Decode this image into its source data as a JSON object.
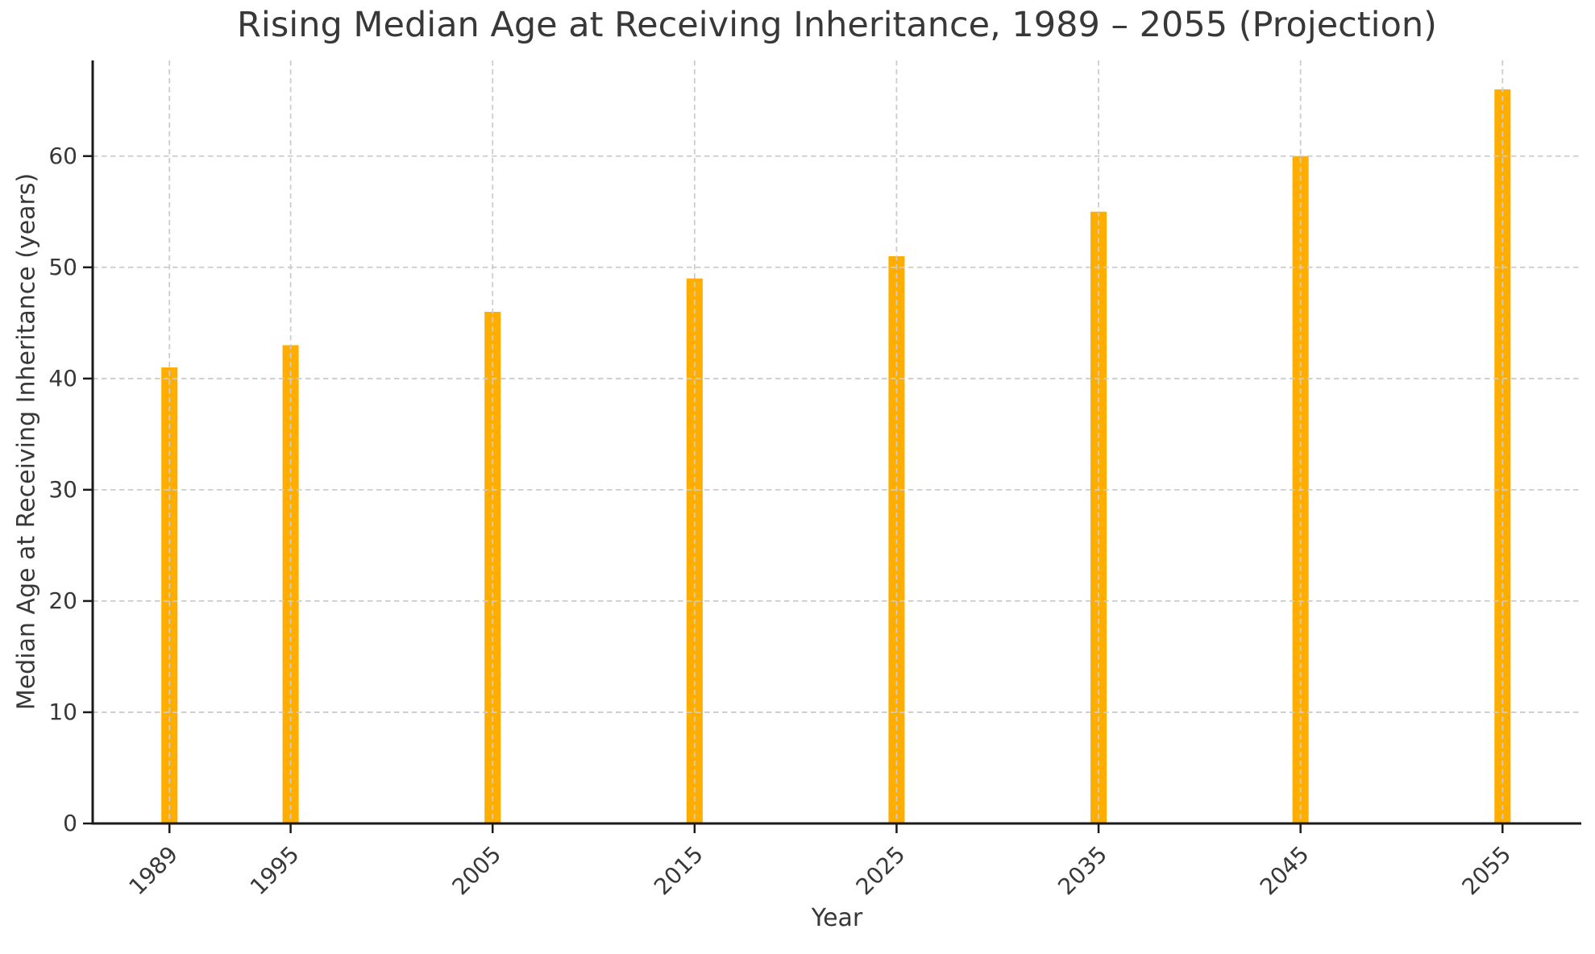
{
  "chart_data": {
    "type": "bar",
    "title": "Rising Median Age at Receiving Inheritance, 1989 – 2055 (Projection)",
    "xlabel": "Year",
    "ylabel": "Median Age at Receiving Inheritance (years)",
    "x": [
      1989,
      1995,
      2005,
      2015,
      2025,
      2035,
      2045,
      2055
    ],
    "values": [
      41,
      43,
      46,
      49,
      51,
      55,
      60,
      66
    ],
    "yticks": [
      0,
      10,
      20,
      30,
      40,
      50,
      60
    ],
    "xlim": [
      1985.2,
      2058.9
    ],
    "ylim": [
      0,
      68.6
    ],
    "bar_width_years": 0.8,
    "x_tick_rotation": -45,
    "grid": true,
    "legend": null,
    "colors": {
      "bar": "#FFAE00",
      "grid": "#cccccc",
      "axis": "#1a1a1a",
      "text": "#383838",
      "background": "#ffffff"
    }
  }
}
